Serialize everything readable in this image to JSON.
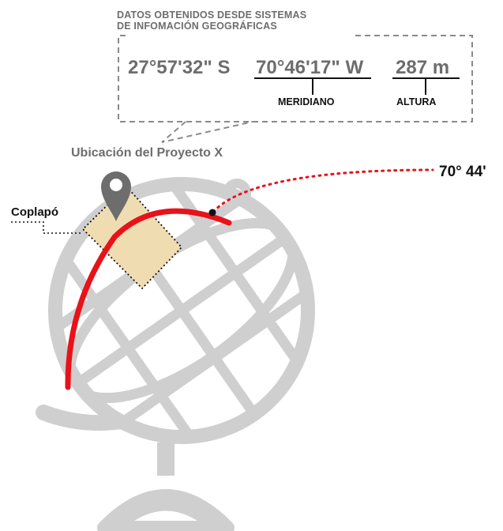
{
  "info_box": {
    "title_line1": "DATOS OBTENIDOS DESDE SISTEMAS",
    "title_line2": "DE INFOMACIÓN GEOGRÁFICAS",
    "latitude": "27°57'32\" S",
    "longitude": "70°46'17\" W",
    "altitude": "287 m",
    "meridian_label": "MERIDIANO",
    "altitude_label": "ALTURA"
  },
  "location_label": "Ubicación del Proyecto X",
  "city_label": "Coplapó",
  "meridian_degrees": "70° 44'",
  "icons": [
    "map-pin-icon",
    "globe-icon"
  ],
  "colors": {
    "globe_gray": "#cfcfcf",
    "text_gray": "#6d6d6d",
    "meridian_red": "#e8121a",
    "region_fill": "#efdcb1",
    "dark": "#111111"
  }
}
